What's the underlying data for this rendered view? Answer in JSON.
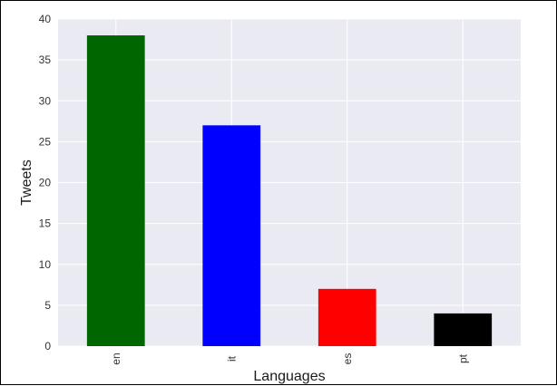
{
  "chart_data": {
    "type": "bar",
    "categories": [
      "en",
      "it",
      "es",
      "pt"
    ],
    "values": [
      38,
      27,
      7,
      4
    ],
    "bar_colors": [
      "#006600",
      "#0000ff",
      "#ff0000",
      "#000000"
    ],
    "xlabel": "Languages",
    "ylabel": "Tweets",
    "ylim": [
      0,
      40
    ],
    "yticks": [
      0,
      5,
      10,
      15,
      20,
      25,
      30,
      35,
      40
    ],
    "grid": true,
    "background": "#eaeaf2",
    "grid_color": "#ffffff"
  }
}
